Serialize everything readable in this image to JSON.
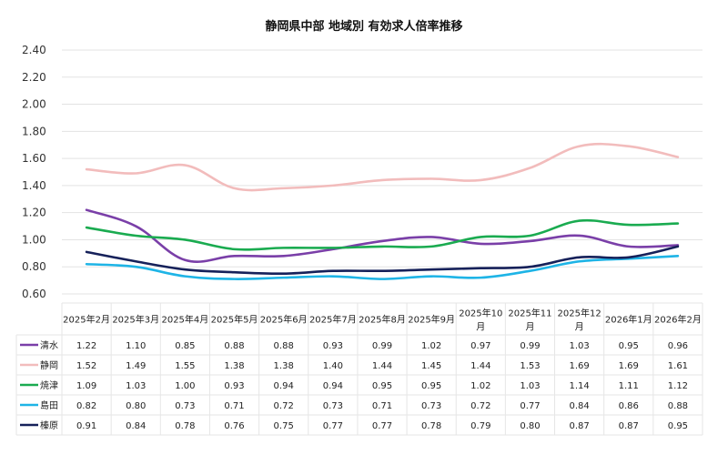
{
  "chart_data": {
    "type": "line",
    "title": "静岡県中部 地域別 有効求人倍率推移",
    "xlabel": "",
    "ylabel": "",
    "ylim": [
      0.6,
      2.4
    ],
    "yticks": [
      "0.60",
      "0.80",
      "1.00",
      "1.20",
      "1.40",
      "1.60",
      "1.80",
      "2.00",
      "2.20",
      "2.40"
    ],
    "grid": true,
    "legend": "data-table-left",
    "categories": [
      [
        "2025年2月"
      ],
      [
        "2025年3月"
      ],
      [
        "2025年4月"
      ],
      [
        "2025年5月"
      ],
      [
        "2025年6月"
      ],
      [
        "2025年7月"
      ],
      [
        "2025年8月"
      ],
      [
        "2025年9月"
      ],
      [
        "2025年10",
        "月"
      ],
      [
        "2025年11",
        "月"
      ],
      [
        "2025年12",
        "月"
      ],
      [
        "2026年1月"
      ],
      [
        "2026年2月"
      ]
    ],
    "series": [
      {
        "name": "清水",
        "color": "#7a3fa8",
        "values": [
          1.22,
          1.1,
          0.85,
          0.88,
          0.88,
          0.93,
          0.99,
          1.02,
          0.97,
          0.99,
          1.03,
          0.95,
          0.96
        ],
        "labels": [
          "1.22",
          "1.10",
          "0.85",
          "0.88",
          "0.88",
          "0.93",
          "0.99",
          "1.02",
          "0.97",
          "0.99",
          "1.03",
          "0.95",
          "0.96"
        ]
      },
      {
        "name": "静岡",
        "color": "#f2bcbc",
        "values": [
          1.52,
          1.49,
          1.55,
          1.38,
          1.38,
          1.4,
          1.44,
          1.45,
          1.44,
          1.53,
          1.69,
          1.69,
          1.61
        ],
        "labels": [
          "1.52",
          "1.49",
          "1.55",
          "1.38",
          "1.38",
          "1.40",
          "1.44",
          "1.45",
          "1.44",
          "1.53",
          "1.69",
          "1.69",
          "1.61"
        ]
      },
      {
        "name": "焼津",
        "color": "#1aab50",
        "values": [
          1.09,
          1.03,
          1.0,
          0.93,
          0.94,
          0.94,
          0.95,
          0.95,
          1.02,
          1.03,
          1.14,
          1.11,
          1.12
        ],
        "labels": [
          "1.09",
          "1.03",
          "1.00",
          "0.93",
          "0.94",
          "0.94",
          "0.95",
          "0.95",
          "1.02",
          "1.03",
          "1.14",
          "1.11",
          "1.12"
        ]
      },
      {
        "name": "島田",
        "color": "#1eb4e6",
        "values": [
          0.82,
          0.8,
          0.73,
          0.71,
          0.72,
          0.73,
          0.71,
          0.73,
          0.72,
          0.77,
          0.84,
          0.86,
          0.88
        ],
        "labels": [
          "0.82",
          "0.80",
          "0.73",
          "0.71",
          "0.72",
          "0.73",
          "0.71",
          "0.73",
          "0.72",
          "0.77",
          "0.84",
          "0.86",
          "0.88"
        ]
      },
      {
        "name": "榛原",
        "color": "#16215a",
        "values": [
          0.91,
          0.84,
          0.78,
          0.76,
          0.75,
          0.77,
          0.77,
          0.78,
          0.79,
          0.8,
          0.87,
          0.87,
          0.95
        ],
        "labels": [
          "0.91",
          "0.84",
          "0.78",
          "0.76",
          "0.75",
          "0.77",
          "0.77",
          "0.78",
          "0.79",
          "0.80",
          "0.87",
          "0.87",
          "0.95"
        ]
      }
    ]
  }
}
